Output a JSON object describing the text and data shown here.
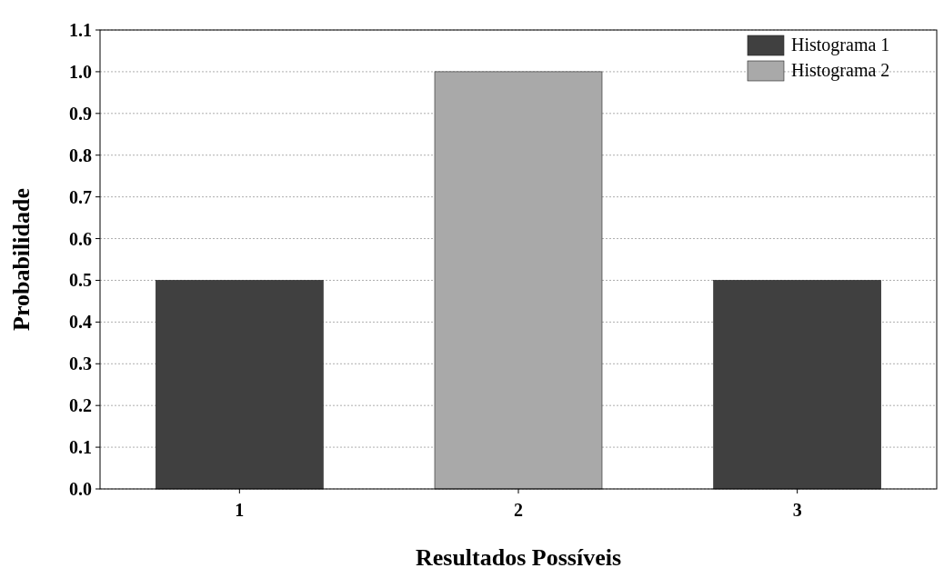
{
  "chart_data": {
    "type": "bar",
    "xlabel": "Resultados Possíveis",
    "ylabel": "Probabilidade",
    "categories": [
      "1",
      "2",
      "3"
    ],
    "series": [
      {
        "name": "Histograma 1",
        "color": "#404040",
        "values": [
          0.5,
          null,
          0.5
        ]
      },
      {
        "name": "Histograma 2",
        "color": "#a9a9a9",
        "values": [
          null,
          1.0,
          null
        ]
      }
    ],
    "ylim": [
      0,
      1.1
    ],
    "yticks": [
      {
        "value": 0,
        "label": "0.0"
      },
      0.1,
      0.2,
      0.3,
      0.4,
      0.5,
      0.6,
      0.7,
      0.8,
      0.9,
      {
        "value": 1,
        "label": "1.0"
      },
      1.1
    ],
    "grid": "y",
    "legend": "top right"
  }
}
